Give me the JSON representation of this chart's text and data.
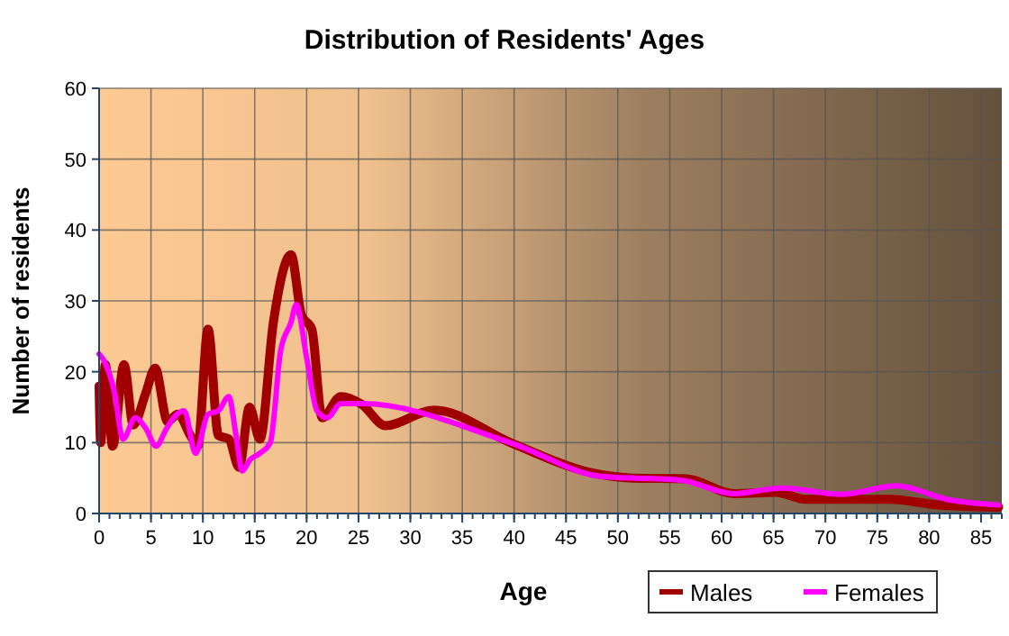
{
  "chart_data": {
    "type": "line",
    "title": "Distribution of Residents' Ages",
    "xlabel": "Age",
    "ylabel": "Number of residents",
    "xlim": [
      0,
      87
    ],
    "xticks": [
      0,
      5,
      10,
      15,
      20,
      25,
      30,
      35,
      40,
      45,
      50,
      55,
      60,
      65,
      70,
      75,
      80,
      85
    ],
    "ylim": [
      0,
      60
    ],
    "yticks": [
      0,
      10,
      20,
      30,
      40,
      50,
      60
    ],
    "grid": true,
    "legend": "bottom right",
    "marker": "none",
    "line_style": "solid",
    "series": [
      {
        "name": "Males",
        "color": "#a00000",
        "x": [
          0,
          0.15,
          0.6,
          1.3,
          2.4,
          3.3,
          4.5,
          5.4,
          6.6,
          7.6,
          8.8,
          9.5,
          10.5,
          11.5,
          12.5,
          13.5,
          14.5,
          15.5,
          16.8,
          18.5,
          19.5,
          20.5,
          21.5,
          23.3,
          25.3,
          27.6,
          32.3,
          39.8,
          47.3,
          51.4,
          56.6,
          61.2,
          65.2,
          68.1,
          76.2,
          80.9,
          86.7
        ],
        "values": [
          18,
          10,
          21,
          9.5,
          21,
          12.5,
          17,
          20.5,
          13,
          14,
          11,
          9.5,
          26,
          11,
          10.5,
          6.5,
          15,
          10.5,
          27,
          36.5,
          28,
          26,
          13.5,
          16.5,
          15.4,
          12.4,
          14.6,
          9.9,
          5.8,
          5,
          4.9,
          2.8,
          3,
          2,
          2,
          1.2,
          0.9
        ]
      },
      {
        "name": "Females",
        "color": "#ff00ff",
        "x": [
          0,
          0.5,
          1.5,
          2.3,
          3.5,
          4.5,
          5.5,
          6.5,
          7.5,
          8.2,
          9.3,
          10.5,
          11.5,
          12.5,
          13.2,
          13.8,
          14.5,
          15.5,
          16.5,
          17.5,
          18.5,
          19,
          20,
          21,
          22,
          23.3,
          25.3,
          39.8,
          48.5,
          56,
          61.2,
          65.8,
          71.6,
          76.8,
          82,
          86.7
        ],
        "values": [
          22.5,
          21.5,
          17,
          10.5,
          13.5,
          12,
          9.5,
          12,
          14,
          14.5,
          8.5,
          14,
          14.5,
          16.5,
          11,
          6,
          7.5,
          8.5,
          10,
          23,
          27,
          29.5,
          22,
          14.5,
          13.5,
          15.5,
          15.5,
          9.9,
          5.2,
          4.7,
          2.8,
          3.6,
          2.7,
          3.9,
          1.9,
          1.2
        ]
      }
    ]
  }
}
